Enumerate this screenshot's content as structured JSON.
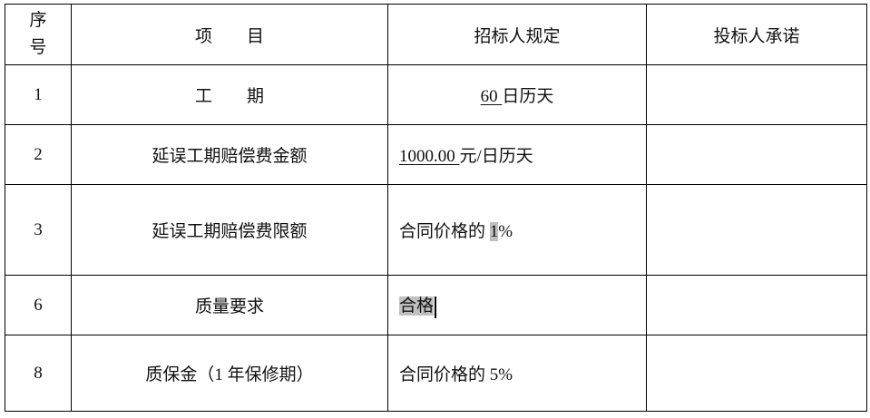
{
  "headers": {
    "seq_line1": "序",
    "seq_line2": "号",
    "item": "项　　目",
    "requirement": "招标人规定",
    "commitment": "投标人承诺"
  },
  "rows": [
    {
      "seq": "1",
      "item": "工　　期",
      "req_value": "60 ",
      "req_suffix": "日历天",
      "commitment": ""
    },
    {
      "seq": "2",
      "item": "延误工期赔偿费金额",
      "req_value": "1000.00 ",
      "req_suffix": "元/日历天",
      "commitment": ""
    },
    {
      "seq": "3",
      "item": "延误工期赔偿费限额",
      "req_prefix": "合同价格的 ",
      "req_value": "1",
      "req_suffix": "%",
      "commitment": ""
    },
    {
      "seq": "6",
      "item": "质量要求",
      "req_value": "合格",
      "commitment": ""
    },
    {
      "seq": "8",
      "item": "质保金（1 年保修期）",
      "req_value": "合同价格的 5%",
      "commitment": ""
    }
  ],
  "highlight_color": "#c0c0c0"
}
